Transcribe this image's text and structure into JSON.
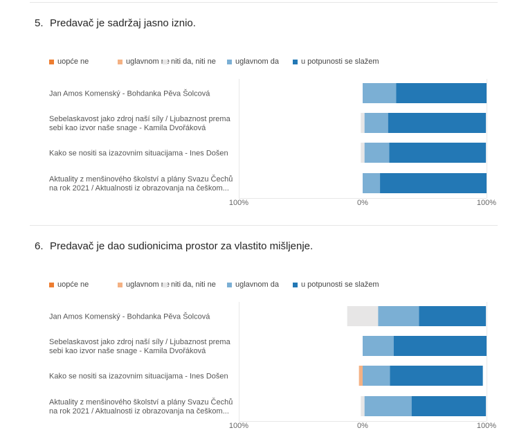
{
  "colors": {
    "uopce_ne": "#ED7D31",
    "uglavnom_ne": "#F4B183",
    "niti_da_niti_ne": "#E7E6E6",
    "uglavnom_da": "#7BAFD4",
    "u_potpunosti": "#2378B5",
    "gridline": "#e8e8e8"
  },
  "questions": [
    {
      "number": "5.",
      "title": "Predavač je sadržaj jasno iznio."
    },
    {
      "number": "6.",
      "title": "Predavač je dao sudionicima prostor za vlastito mišljenje."
    }
  ],
  "chart_data": [
    {
      "type": "bar",
      "title": "Predavač je sadržaj jasno iznio.",
      "orientation": "horizontal-diverging-stacked",
      "categories": [
        [
          "Jan Amos Komenský - Bohdanka Pěva Šolcová"
        ],
        [
          "Sebelaskavost jako zdroj naší síly / Ljubaznost prema",
          "sebi kao izvor naše snage - Kamila Dvořáková"
        ],
        [
          "Kako se nositi sa izazovnim situacijama - Ines Došen"
        ],
        [
          "Aktuality z menšinového školství a plány Svazu Čechů",
          "na rok 2021 / Aktualnosti iz obrazovanja na češkom..."
        ]
      ],
      "series": [
        {
          "name": "uopće ne",
          "values": [
            0,
            0,
            0,
            0
          ]
        },
        {
          "name": "uglavnom ne",
          "values": [
            0,
            0,
            0,
            0
          ]
        },
        {
          "name": "niti da, niti ne",
          "values": [
            0,
            3,
            3,
            0
          ]
        },
        {
          "name": "uglavnom da",
          "values": [
            27,
            19,
            20,
            14
          ]
        },
        {
          "name": "u potpunosti se slažem",
          "values": [
            73,
            79,
            78,
            86
          ]
        }
      ],
      "x_ticks": [
        "100%",
        "0%",
        "100%"
      ],
      "xlim": [
        -100,
        100
      ],
      "legend_position": "top-left",
      "grid": false
    },
    {
      "type": "bar",
      "title": "Predavač je dao sudionicima prostor za vlastito mišljenje.",
      "orientation": "horizontal-diverging-stacked",
      "categories": [
        [
          "Jan Amos Komenský - Bohdanka Pěva Šolcová"
        ],
        [
          "Sebelaskavost jako zdroj naší síly / Ljubaznost prema",
          "sebi kao izvor naše snage - Kamila Dvořáková"
        ],
        [
          "Kako se nositi sa izazovnim situacijama - Ines Došen"
        ],
        [
          "Aktuality z menšinového školství a plány Svazu Čechů",
          "na rok 2021 / Aktualnosti iz obrazovanja na češkom..."
        ]
      ],
      "series": [
        {
          "name": "uopće ne",
          "values": [
            0,
            0,
            0,
            0
          ]
        },
        {
          "name": "uglavnom ne",
          "values": [
            0,
            0,
            3,
            0
          ]
        },
        {
          "name": "niti da, niti ne",
          "values": [
            25,
            0,
            0,
            3
          ]
        },
        {
          "name": "uglavnom da",
          "values": [
            33,
            25,
            22,
            38
          ]
        },
        {
          "name": "u potpunosti se slažem",
          "values": [
            54,
            75,
            75,
            60
          ]
        }
      ],
      "x_ticks": [
        "100%",
        "0%",
        "100%"
      ],
      "xlim": [
        -100,
        100
      ],
      "legend_position": "top-left",
      "grid": false
    }
  ]
}
